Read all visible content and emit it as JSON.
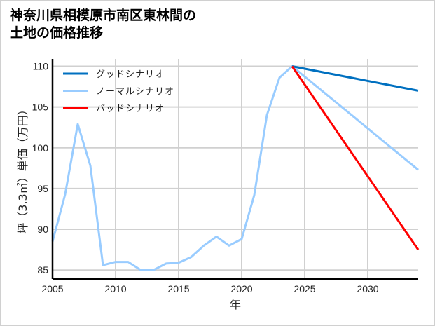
{
  "title_line1": "神奈川県相模原市南区東林間の",
  "title_line2": "土地の価格推移",
  "chart_data": {
    "type": "line",
    "title": "神奈川県相模原市南区東林間の土地の価格推移",
    "xlabel": "年",
    "ylabel": "坪（3.3㎡）単価（万円）",
    "xlim": [
      2005,
      2034
    ],
    "ylim": [
      83.9,
      110.9
    ],
    "x_ticks": [
      2005,
      2010,
      2015,
      2020,
      2025,
      2030
    ],
    "y_ticks": [
      85,
      90,
      95,
      100,
      105,
      110
    ],
    "grid": true,
    "legend_position": "upper left",
    "series": [
      {
        "name": "グッドシナリオ",
        "color": "#0070c0",
        "x": [
          2024,
          2034
        ],
        "values": [
          110.0,
          107.0
        ]
      },
      {
        "name": "ノーマルシナリオ",
        "color": "#99ccff",
        "x": [
          2005,
          2006,
          2007,
          2008,
          2009,
          2010,
          2011,
          2012,
          2013,
          2014,
          2015,
          2016,
          2017,
          2018,
          2019,
          2020,
          2021,
          2022,
          2023,
          2024,
          2034
        ],
        "values": [
          88.5,
          94.3,
          102.9,
          97.8,
          85.6,
          86.0,
          86.0,
          85.0,
          85.0,
          85.8,
          85.9,
          86.6,
          88.0,
          89.1,
          88.0,
          88.8,
          94.2,
          104.0,
          108.6,
          110.0,
          97.3
        ]
      },
      {
        "name": "バッドシナリオ",
        "color": "#ff0000",
        "x": [
          2024,
          2034
        ],
        "values": [
          110.0,
          87.5
        ]
      }
    ]
  }
}
